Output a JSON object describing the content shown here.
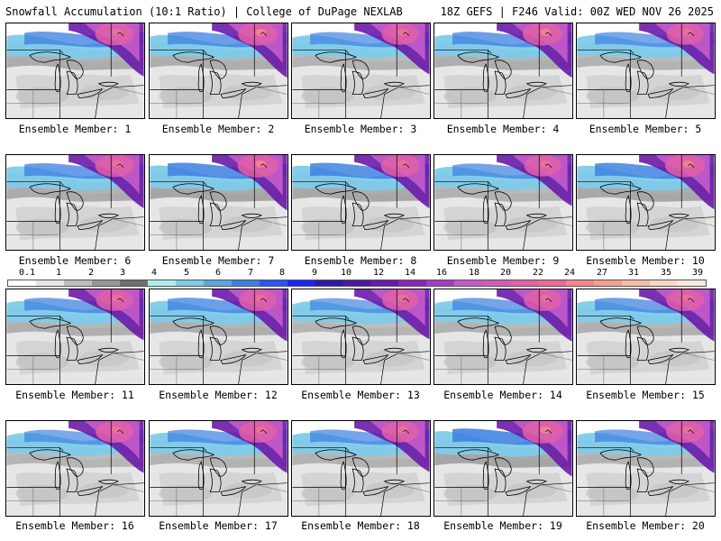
{
  "header": {
    "title_left": "Snowfall Accumulation (10:1 Ratio) | College of DuPage NEXLAB",
    "title_right": "18Z GEFS | F246 Valid: 00Z WED NOV 26 2025"
  },
  "legend": {
    "tick_labels": [
      "0.1",
      "1",
      "2",
      "3",
      "4",
      "5",
      "6",
      "7",
      "8",
      "9",
      "10",
      "12",
      "14",
      "16",
      "18",
      "20",
      "22",
      "24",
      "27",
      "31",
      "35",
      "39"
    ],
    "colors": [
      "#ffffff",
      "#e6e6e6",
      "#bdbdbd",
      "#969696",
      "#6e6e6e",
      "#a8f0f0",
      "#7ecbea",
      "#5aa6e0",
      "#3c7fe0",
      "#2a55f0",
      "#1a26f0",
      "#2c1aa8",
      "#4a1a9e",
      "#6a1aa8",
      "#8a26b4",
      "#a63cc0",
      "#c25ac8",
      "#d05eb8",
      "#e060a8",
      "#ea6a98",
      "#f2868c",
      "#f4a090",
      "#f6bca8",
      "#f8d6c4",
      "#fae8dc"
    ]
  },
  "panels": [
    {
      "label": "Ensemble Member: 1",
      "intensity": 0.8,
      "band": 0.55
    },
    {
      "label": "Ensemble Member: 2",
      "intensity": 0.85,
      "band": 0.5
    },
    {
      "label": "Ensemble Member: 3",
      "intensity": 0.7,
      "band": 0.35
    },
    {
      "label": "Ensemble Member: 4",
      "intensity": 0.85,
      "band": 0.5
    },
    {
      "label": "Ensemble Member: 5",
      "intensity": 0.7,
      "band": 0.35
    },
    {
      "label": "Ensemble Member: 6",
      "intensity": 0.8,
      "band": 0.55
    },
    {
      "label": "Ensemble Member: 7",
      "intensity": 0.9,
      "band": 0.75
    },
    {
      "label": "Ensemble Member: 8",
      "intensity": 0.8,
      "band": 0.7
    },
    {
      "label": "Ensemble Member: 9",
      "intensity": 0.7,
      "band": 0.4
    },
    {
      "label": "Ensemble Member: 10",
      "intensity": 0.85,
      "band": 0.7
    },
    {
      "label": "Ensemble Member: 11",
      "intensity": 0.7,
      "band": 0.45
    },
    {
      "label": "Ensemble Member: 12",
      "intensity": 0.75,
      "band": 0.5
    },
    {
      "label": "Ensemble Member: 13",
      "intensity": 0.65,
      "band": 0.3
    },
    {
      "label": "Ensemble Member: 14",
      "intensity": 0.75,
      "band": 0.4
    },
    {
      "label": "Ensemble Member: 15",
      "intensity": 0.75,
      "band": 0.45
    },
    {
      "label": "Ensemble Member: 16",
      "intensity": 0.75,
      "band": 0.3
    },
    {
      "label": "Ensemble Member: 17",
      "intensity": 0.75,
      "band": 0.4
    },
    {
      "label": "Ensemble Member: 18",
      "intensity": 0.7,
      "band": 0.4
    },
    {
      "label": "Ensemble Member: 19",
      "intensity": 0.9,
      "band": 0.8
    },
    {
      "label": "Ensemble Member: 20",
      "intensity": 0.75,
      "band": 0.4
    }
  ]
}
